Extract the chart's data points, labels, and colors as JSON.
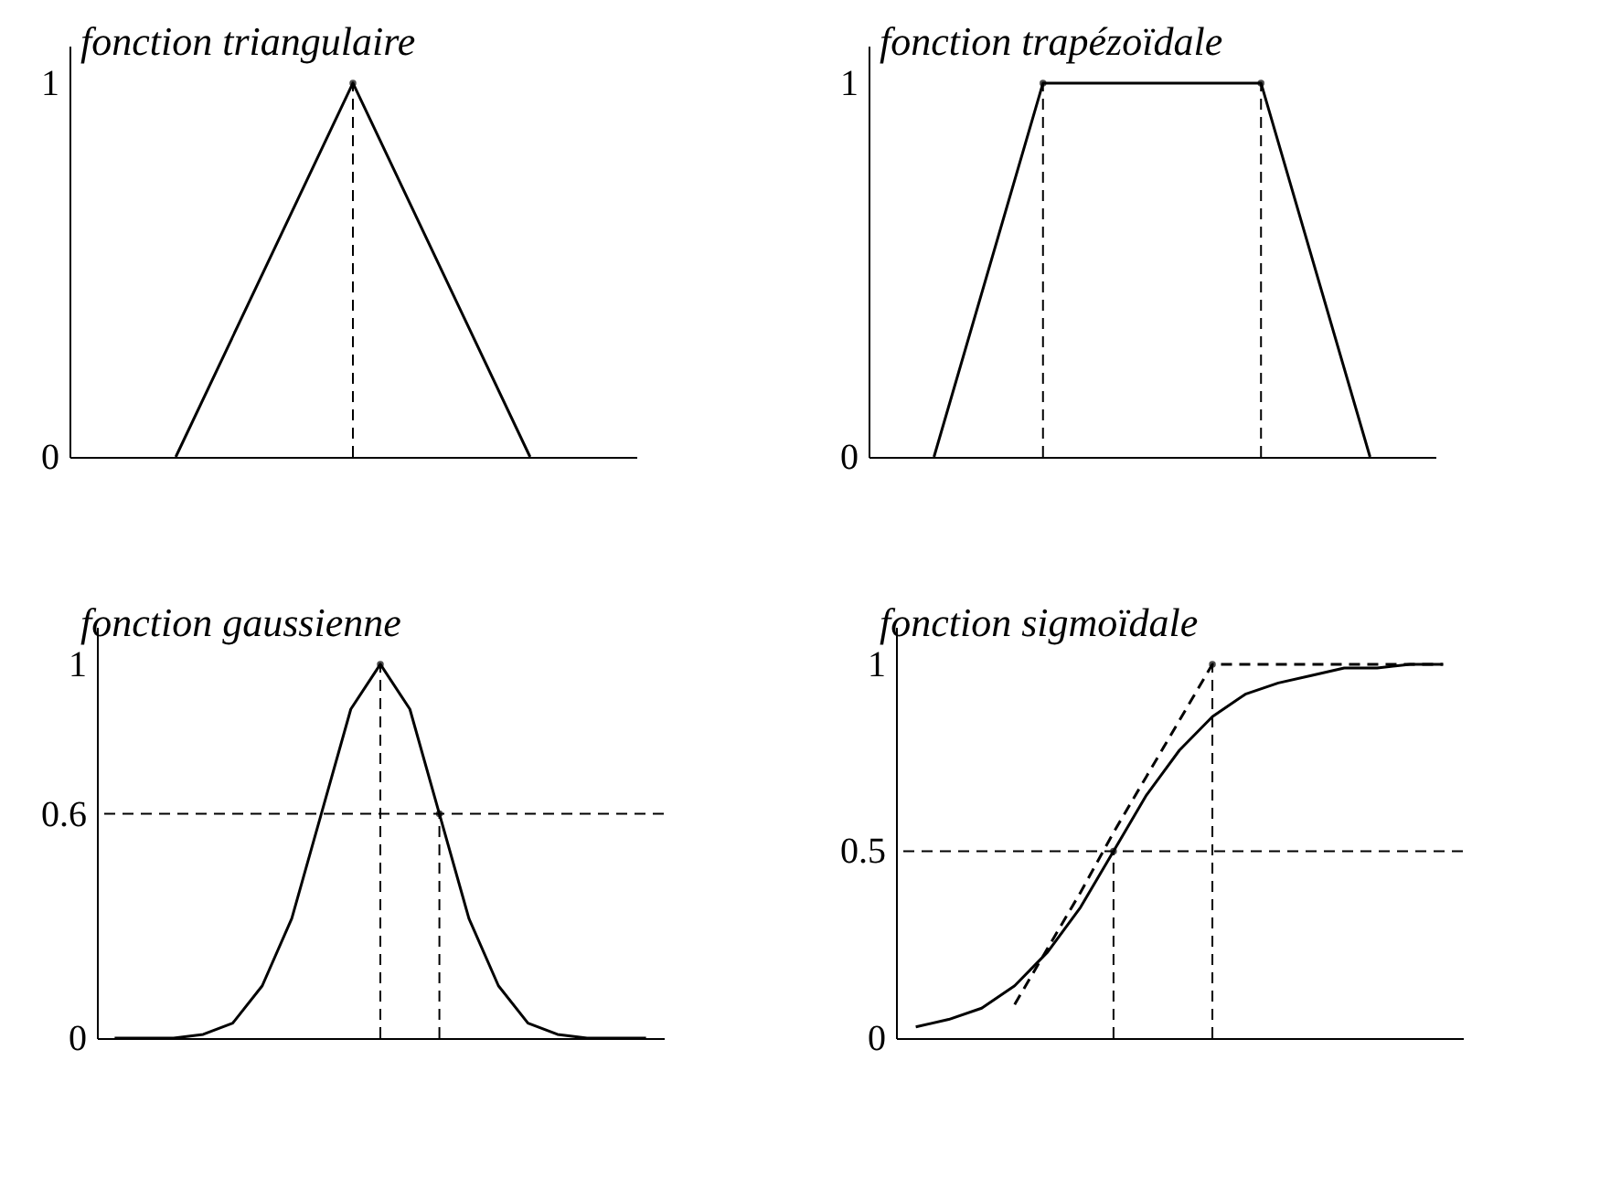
{
  "chart_data": [
    {
      "type": "line",
      "title": "fonction triangulaire",
      "categories": [
        null,
        null,
        null
      ],
      "ylim": [
        0,
        1.1
      ],
      "yticks": [
        0,
        1
      ],
      "tick_labels": "y",
      "line_style": "solid",
      "marker": "none",
      "series": [
        {
          "color": "#000000",
          "values": [
            0,
            1,
            0
          ]
        },
        {
          "type": "lollipop",
          "color": "#000000",
          "line_style": "dashed",
          "marker": "circle",
          "values": [
            null,
            1,
            null
          ]
        }
      ]
    },
    {
      "type": "line",
      "title": "fonction trapézoïdale",
      "categories": [
        null,
        null,
        null,
        null,
        null
      ],
      "ylim": [
        0,
        1.1
      ],
      "yticks": [
        0,
        1
      ],
      "tick_labels": "y",
      "line_style": "solid",
      "marker": "none",
      "series": [
        {
          "color": "#000000",
          "values": [
            0,
            1,
            1,
            1,
            0
          ]
        },
        {
          "type": "lollipop",
          "color": "#000000",
          "line_style": "dashed",
          "marker": "circle",
          "values": [
            null,
            1,
            null,
            1,
            null
          ]
        }
      ]
    },
    {
      "type": "line",
      "title": "fonction gaussienne",
      "categories": [
        null,
        null,
        null,
        null,
        null,
        null,
        null,
        null,
        null,
        null,
        null,
        null,
        null,
        null,
        null,
        null,
        null,
        null,
        null
      ],
      "ylim": [
        0,
        1.1
      ],
      "yticks": [
        0,
        0.6,
        1
      ],
      "tick_labels": "y",
      "line_style": "solid",
      "marker": "none",
      "series": [
        {
          "color": "#000000",
          "values": [
            0,
            0,
            0,
            0.01,
            0.04,
            0.14,
            0.32,
            0.6,
            0.88,
            1,
            0.88,
            0.6,
            0.32,
            0.14,
            0.04,
            0.01,
            0,
            0,
            0
          ]
        },
        {
          "type": "lollipop",
          "color": "#000000",
          "line_style": "dashed",
          "marker": "circle",
          "values": [
            null,
            null,
            null,
            null,
            null,
            null,
            null,
            null,
            null,
            1,
            null,
            0.6,
            null,
            null,
            null,
            null,
            null,
            null,
            null
          ]
        }
      ],
      "ref_lines": [
        {
          "axis": "y",
          "value": 0.6,
          "line_style": "dashed"
        }
      ]
    },
    {
      "type": "line",
      "title": "fonction sigmoïdale",
      "categories": [
        null,
        null,
        null,
        null,
        null,
        null,
        null,
        null,
        null,
        null,
        null,
        null,
        null,
        null,
        null,
        null,
        null
      ],
      "ylim": [
        0,
        1.1
      ],
      "yticks": [
        0,
        0.5,
        1
      ],
      "tick_labels": "y",
      "line_style": "solid",
      "marker": "none",
      "series": [
        {
          "color": "#000000",
          "values": [
            0.03,
            0.05,
            0.08,
            0.14,
            0.23,
            0.35,
            0.5,
            0.65,
            0.77,
            0.86,
            0.92,
            0.95,
            0.97,
            0.99,
            0.99,
            1,
            1
          ]
        },
        {
          "color": "#000000",
          "line_style": "dashed",
          "values": [
            null,
            null,
            null,
            0.09,
            0.24,
            0.39,
            0.55,
            0.7,
            0.85,
            1,
            1,
            1,
            1,
            1,
            1,
            1,
            1
          ]
        },
        {
          "type": "lollipop",
          "color": "#000000",
          "line_style": "dashed",
          "marker": "circle",
          "values": [
            null,
            null,
            null,
            null,
            null,
            null,
            0.5,
            null,
            null,
            1,
            null,
            null,
            null,
            null,
            null,
            null,
            null
          ]
        }
      ],
      "ref_lines": [
        {
          "axis": "y",
          "value": 0.5,
          "line_style": "dashed"
        }
      ]
    }
  ]
}
